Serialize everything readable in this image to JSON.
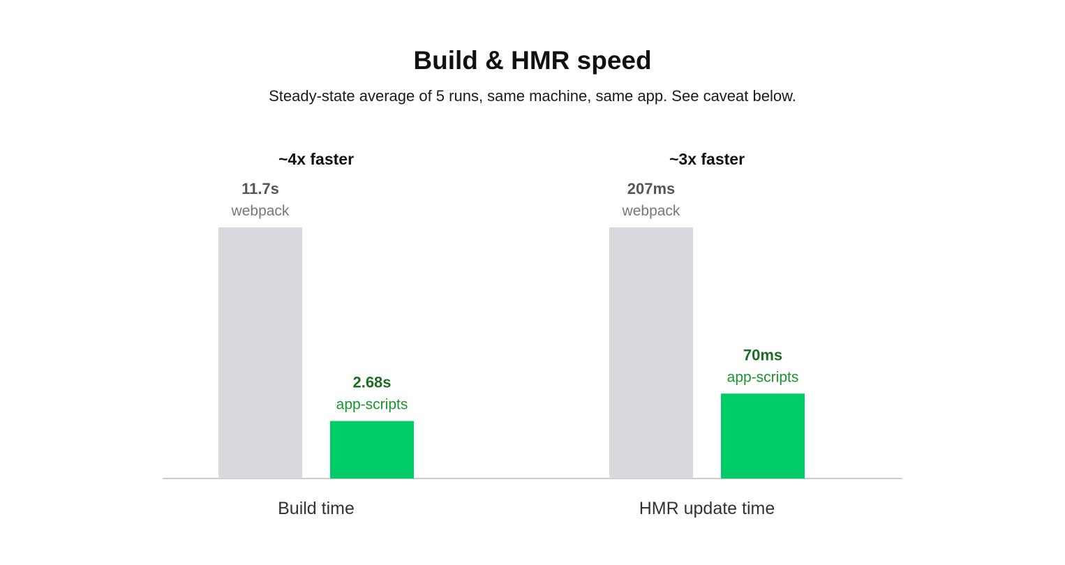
{
  "title": "Build & HMR speed",
  "subtitle": "Steady-state average of 5 runs, same machine, same app. See caveat below.",
  "colors": {
    "webpack_bar": "#d8d9de",
    "webpack_value": "#555555",
    "webpack_label": "#777777",
    "appscripts_bar": "#00cc6a",
    "appscripts_value": "#1e6b22",
    "appscripts_label": "#17962a",
    "speedup": "#111111",
    "axis": "#cccccc",
    "category_label": "#333333"
  },
  "chart_data": [
    {
      "type": "bar",
      "category": "Build time",
      "unit": "s",
      "speedup_label": "~4x faster",
      "bars": [
        {
          "series": "webpack",
          "value": 11.7,
          "value_label": "11.7s"
        },
        {
          "series": "app-scripts",
          "value": 2.68,
          "value_label": "2.68s"
        }
      ]
    },
    {
      "type": "bar",
      "category": "HMR update time",
      "unit": "ms",
      "speedup_label": "~3x faster",
      "bars": [
        {
          "series": "webpack",
          "value": 207,
          "value_label": "207ms"
        },
        {
          "series": "app-scripts",
          "value": 70,
          "value_label": "70ms"
        }
      ]
    }
  ]
}
